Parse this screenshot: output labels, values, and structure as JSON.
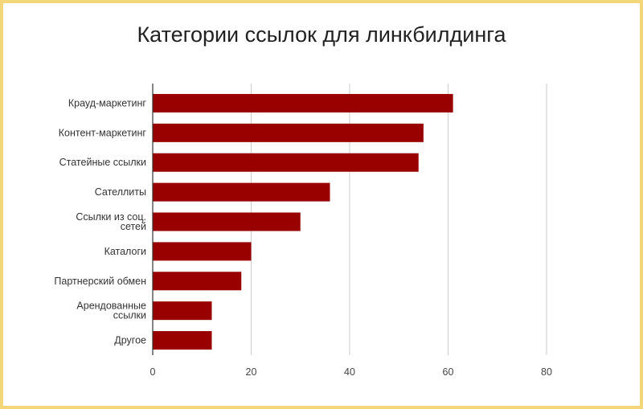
{
  "chart_data": {
    "type": "bar",
    "orientation": "horizontal",
    "title": "Категории ссылок для линкбилдинга",
    "categories": [
      [
        "Крауд-маркетинг"
      ],
      [
        "Контент-маркетинг"
      ],
      [
        "Статейные ссылки"
      ],
      [
        "Сателлиты"
      ],
      [
        "Ссылки из соц.",
        "сетей"
      ],
      [
        "Каталоги"
      ],
      [
        "Партнерский обмен"
      ],
      [
        "Арендованные",
        "ссылки"
      ],
      [
        "Другое"
      ]
    ],
    "values": [
      61,
      55,
      54,
      36,
      30,
      20,
      18,
      12,
      12
    ],
    "xlim": [
      0,
      80
    ],
    "xticks": [
      0,
      20,
      40,
      60,
      80
    ],
    "grid": true,
    "bar_color": "#990000",
    "frame_color": "#f3d57a"
  }
}
